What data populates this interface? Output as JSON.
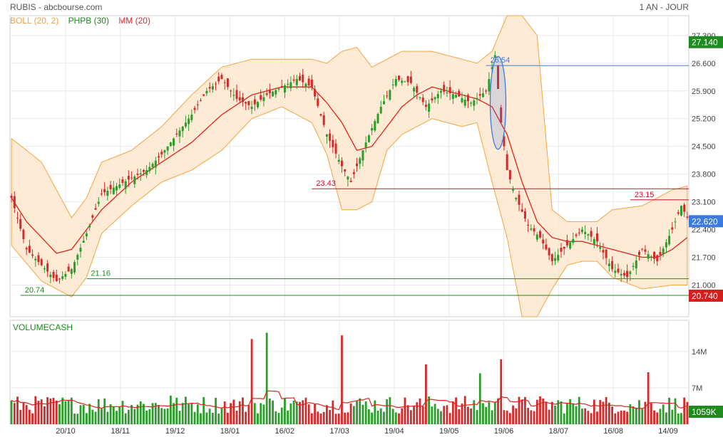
{
  "header": {
    "title": "RUBIS - abcbourse.com",
    "period": "1 AN - JOUR"
  },
  "legend": {
    "boll": "BOLL (20, 2)",
    "phpb": "PHPB (30)",
    "mm": "MM (20)"
  },
  "colors": {
    "up": "#2a9d2a",
    "down": "#d42a2a",
    "boll_fill": "#fde7cf",
    "boll_line": "#f5a442",
    "mm": "#e2231a",
    "green_tag": "#1f8a1f",
    "red_tag": "#d41f1f",
    "blue_tag": "#3b7be0",
    "phpb": "#0b7a0b"
  },
  "chart_data": [
    {
      "type": "line",
      "title": "",
      "x_ticks": [
        "20/10",
        "18/11",
        "19/12",
        "18/01",
        "16/02",
        "17/03",
        "19/04",
        "19/05",
        "19/06",
        "18/07",
        "16/08",
        "14/09"
      ],
      "y_ticks": [
        "27.300",
        "26.600",
        "25.900",
        "25.200",
        "24.500",
        "23.800",
        "23.100",
        "22.400",
        "21.700",
        "21.000"
      ],
      "ylim": [
        20.2,
        27.8
      ],
      "grid": true,
      "series": [
        {
          "name": "RUBIS",
          "kind": "candlestick",
          "close_points": [
            [
              0,
              23.2
            ],
            [
              5,
              21.9
            ],
            [
              10,
              21.5
            ],
            [
              15,
              21.1
            ],
            [
              20,
              21.4
            ],
            [
              25,
              22.3
            ],
            [
              30,
              23.3
            ],
            [
              35,
              23.5
            ],
            [
              40,
              23.7
            ],
            [
              45,
              23.9
            ],
            [
              50,
              24.3
            ],
            [
              55,
              24.8
            ],
            [
              60,
              25.3
            ],
            [
              65,
              25.9
            ],
            [
              70,
              26.2
            ],
            [
              75,
              25.7
            ],
            [
              80,
              25.5
            ],
            [
              85,
              25.8
            ],
            [
              90,
              26.0
            ],
            [
              95,
              26.2
            ],
            [
              100,
              26.0
            ],
            [
              105,
              24.8
            ],
            [
              110,
              24.0
            ],
            [
              113,
              23.6
            ],
            [
              118,
              24.6
            ],
            [
              123,
              25.5
            ],
            [
              128,
              26.2
            ],
            [
              133,
              26.1
            ],
            [
              138,
              25.5
            ],
            [
              143,
              25.9
            ],
            [
              148,
              25.8
            ],
            [
              153,
              25.6
            ],
            [
              158,
              25.9
            ],
            [
              161,
              26.8
            ],
            [
              163,
              25.1
            ],
            [
              165,
              23.9
            ],
            [
              168,
              23.2
            ],
            [
              172,
              22.5
            ],
            [
              176,
              22.2
            ],
            [
              180,
              21.6
            ],
            [
              185,
              22.0
            ],
            [
              190,
              22.4
            ],
            [
              195,
              22.1
            ],
            [
              200,
              21.4
            ],
            [
              205,
              21.2
            ],
            [
              210,
              21.9
            ],
            [
              215,
              21.6
            ],
            [
              220,
              22.4
            ],
            [
              223,
              23.0
            ],
            [
              225,
              22.7
            ]
          ]
        },
        {
          "name": "BOLL (20, 2)",
          "kind": "band",
          "upper": [
            [
              0,
              24.7
            ],
            [
              10,
              24.1
            ],
            [
              20,
              22.7
            ],
            [
              25,
              23.2
            ],
            [
              30,
              24.1
            ],
            [
              40,
              24.4
            ],
            [
              50,
              25.0
            ],
            [
              60,
              25.8
            ],
            [
              70,
              26.5
            ],
            [
              80,
              26.7
            ],
            [
              90,
              26.7
            ],
            [
              100,
              26.7
            ],
            [
              105,
              26.6
            ],
            [
              110,
              26.9
            ],
            [
              115,
              27.0
            ],
            [
              120,
              26.5
            ],
            [
              130,
              26.9
            ],
            [
              140,
              26.9
            ],
            [
              150,
              26.7
            ],
            [
              155,
              26.6
            ],
            [
              160,
              26.9
            ],
            [
              165,
              27.8
            ],
            [
              170,
              27.8
            ],
            [
              175,
              27.3
            ],
            [
              180,
              22.9
            ],
            [
              185,
              22.6
            ],
            [
              190,
              22.6
            ],
            [
              195,
              22.6
            ],
            [
              200,
              22.9
            ],
            [
              210,
              23.0
            ],
            [
              220,
              23.4
            ],
            [
              225,
              23.5
            ]
          ],
          "lower": [
            [
              0,
              22.0
            ],
            [
              10,
              21.1
            ],
            [
              20,
              20.7
            ],
            [
              25,
              21.2
            ],
            [
              30,
              22.3
            ],
            [
              40,
              23.0
            ],
            [
              50,
              23.6
            ],
            [
              60,
              23.9
            ],
            [
              70,
              24.4
            ],
            [
              80,
              25.2
            ],
            [
              90,
              25.5
            ],
            [
              100,
              25.1
            ],
            [
              105,
              24.3
            ],
            [
              110,
              22.9
            ],
            [
              115,
              22.9
            ],
            [
              120,
              23.1
            ],
            [
              125,
              24.4
            ],
            [
              130,
              24.8
            ],
            [
              140,
              25.2
            ],
            [
              150,
              25.0
            ],
            [
              155,
              25.1
            ],
            [
              160,
              23.6
            ],
            [
              165,
              22.2
            ],
            [
              170,
              20.2
            ],
            [
              175,
              20.2
            ],
            [
              180,
              20.9
            ],
            [
              185,
              21.5
            ],
            [
              190,
              21.6
            ],
            [
              195,
              21.6
            ],
            [
              200,
              21.2
            ],
            [
              210,
              20.9
            ],
            [
              220,
              21.0
            ],
            [
              225,
              21.0
            ]
          ]
        },
        {
          "name": "MM (20)",
          "kind": "line",
          "points": [
            [
              0,
              23.2
            ],
            [
              5,
              22.6
            ],
            [
              10,
              22.2
            ],
            [
              15,
              21.8
            ],
            [
              20,
              21.9
            ],
            [
              25,
              22.4
            ],
            [
              30,
              22.9
            ],
            [
              40,
              23.6
            ],
            [
              50,
              24.1
            ],
            [
              60,
              24.6
            ],
            [
              70,
              25.3
            ],
            [
              80,
              25.8
            ],
            [
              90,
              26.0
            ],
            [
              100,
              26.0
            ],
            [
              105,
              25.6
            ],
            [
              110,
              25.1
            ],
            [
              115,
              24.4
            ],
            [
              120,
              24.5
            ],
            [
              125,
              25.0
            ],
            [
              130,
              25.5
            ],
            [
              135,
              25.8
            ],
            [
              140,
              26.0
            ],
            [
              145,
              25.9
            ],
            [
              150,
              25.8
            ],
            [
              155,
              25.7
            ],
            [
              160,
              25.5
            ],
            [
              165,
              24.8
            ],
            [
              170,
              23.6
            ],
            [
              175,
              22.6
            ],
            [
              180,
              22.2
            ],
            [
              185,
              22.1
            ],
            [
              190,
              22.1
            ],
            [
              195,
              22.0
            ],
            [
              200,
              21.9
            ],
            [
              205,
              21.8
            ],
            [
              210,
              21.7
            ],
            [
              215,
              21.7
            ],
            [
              220,
              21.9
            ],
            [
              225,
              22.2
            ]
          ]
        }
      ],
      "levels": [
        {
          "label": "26.54",
          "value": 26.54,
          "color": "#3b7be0",
          "start": 158
        },
        {
          "label": "23.43",
          "value": 23.43,
          "color": "#c8102e",
          "start": 100
        },
        {
          "label": "23.15",
          "value": 23.15,
          "color": "#c8102e",
          "start": 206
        },
        {
          "label": "21.16",
          "value": 21.16,
          "color": "#1f8a1f",
          "start": 25
        },
        {
          "label": "20.74",
          "value": 20.74,
          "color": "#1f8a1f",
          "start": 3
        }
      ],
      "price_tags": [
        {
          "label": "27.140",
          "value": 27.14,
          "color": "#1f8a1f"
        },
        {
          "label": "22.620",
          "value": 22.62,
          "color": "#3b7be0"
        },
        {
          "label": "20.740",
          "value": 20.74,
          "color": "#d41f1f"
        }
      ]
    },
    {
      "type": "bar",
      "title": "VOLUMECASH",
      "y_ticks": [
        "14M",
        "7M"
      ],
      "ylim": [
        0,
        20
      ],
      "last_value_label": "1059K",
      "spikes": [
        [
          53,
          5.5
        ],
        [
          80,
          16.4
        ],
        [
          85,
          17.6
        ],
        [
          110,
          17.1
        ],
        [
          138,
          11.5
        ],
        [
          156,
          9.8
        ],
        [
          163,
          12.5
        ],
        [
          212,
          10.0
        ]
      ]
    }
  ]
}
